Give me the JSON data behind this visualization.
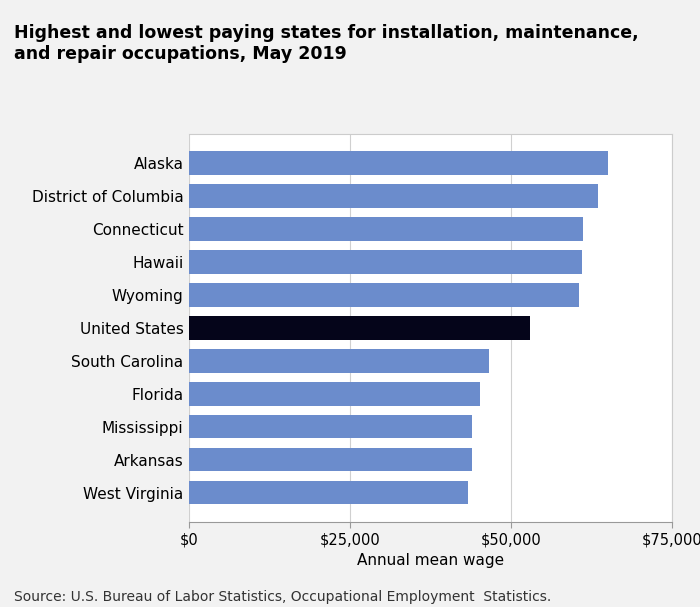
{
  "title": "Highest and lowest paying states for installation, maintenance,\nand repair occupations, May 2019",
  "categories": [
    "Alaska",
    "District of Columbia",
    "Connecticut",
    "Hawaii",
    "Wyoming",
    "United States",
    "South Carolina",
    "Florida",
    "Mississippi",
    "Arkansas",
    "West Virginia"
  ],
  "values": [
    65070,
    63480,
    61130,
    61060,
    60540,
    52960,
    46530,
    45150,
    44020,
    43870,
    43350
  ],
  "bar_colors": [
    "#6b8ccc",
    "#6b8ccc",
    "#6b8ccc",
    "#6b8ccc",
    "#6b8ccc",
    "#05051a",
    "#6b8ccc",
    "#6b8ccc",
    "#6b8ccc",
    "#6b8ccc",
    "#6b8ccc"
  ],
  "xlabel": "Annual mean wage",
  "xlim": [
    0,
    75000
  ],
  "xticks": [
    0,
    25000,
    50000,
    75000
  ],
  "xticklabels": [
    "$0",
    "$25,000",
    "$50,000",
    "$75,000"
  ],
  "source": "Source: U.S. Bureau of Labor Statistics, Occupational Employment  Statistics.",
  "figure_bg_color": "#f2f2f2",
  "plot_bg_color": "#ffffff",
  "title_fontsize": 12.5,
  "label_fontsize": 11,
  "tick_fontsize": 10.5,
  "source_fontsize": 10
}
